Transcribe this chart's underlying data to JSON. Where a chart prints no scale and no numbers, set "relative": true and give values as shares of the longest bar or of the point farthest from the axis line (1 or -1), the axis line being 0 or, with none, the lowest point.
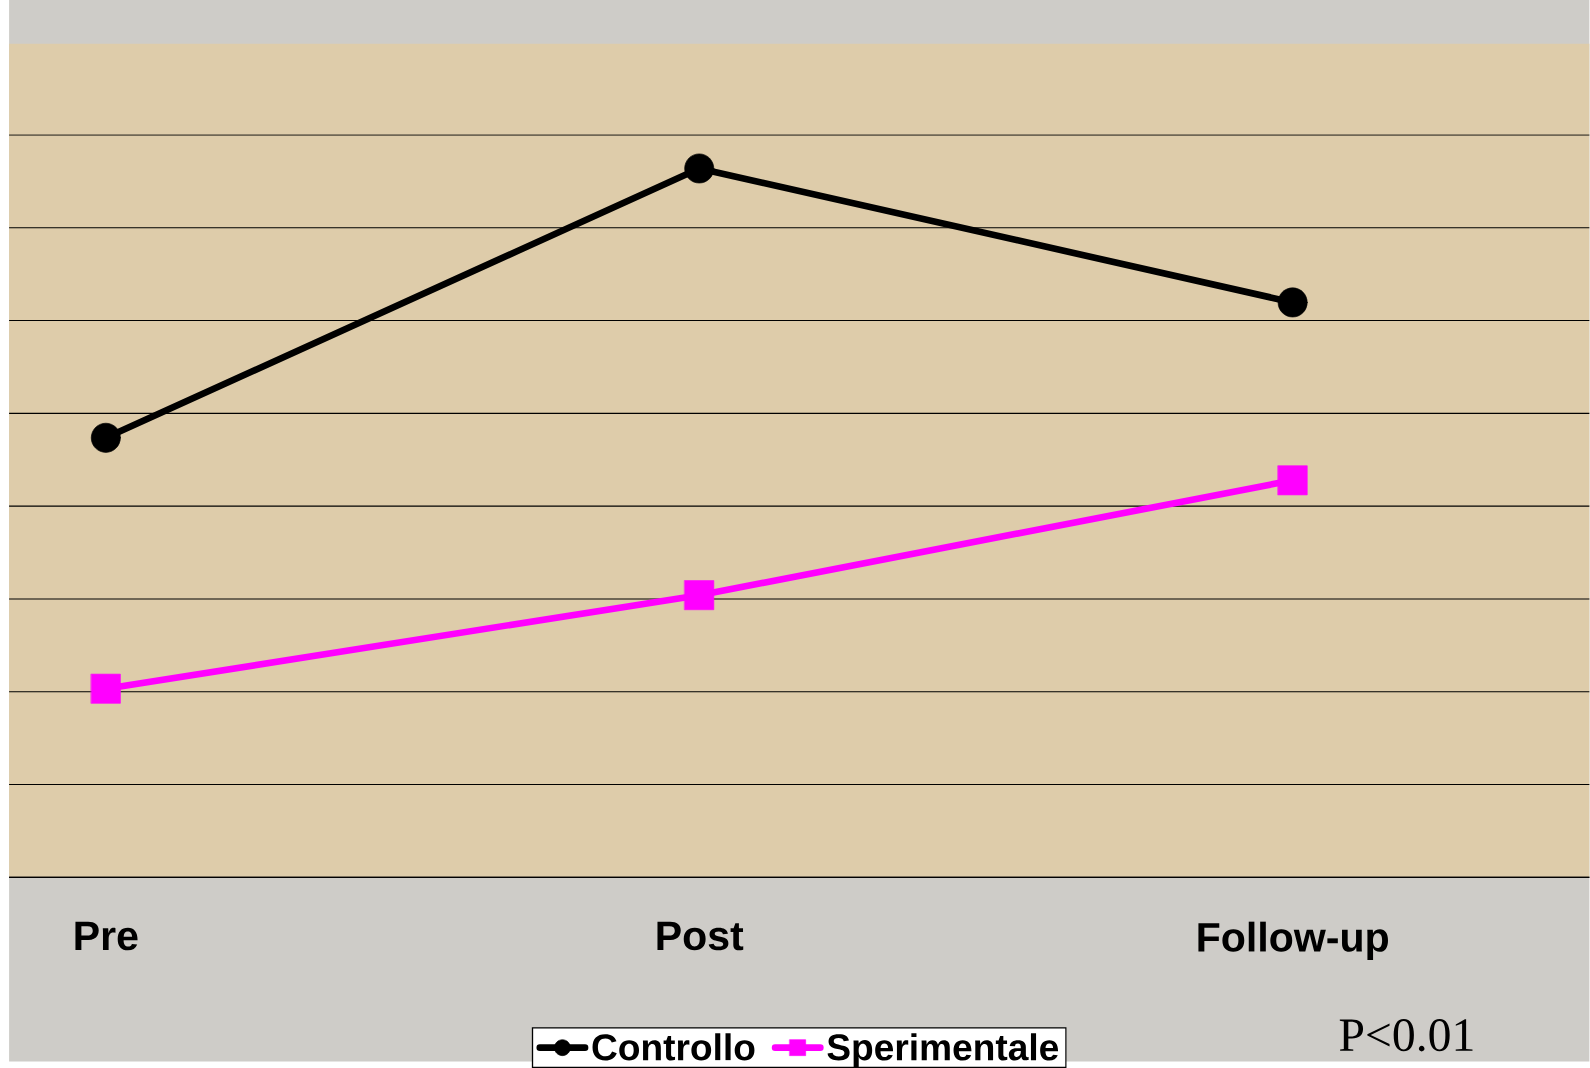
{
  "chart_data": {
    "type": "line",
    "relative": true,
    "categories": [
      "Pre",
      "Post",
      "Follow-up"
    ],
    "series": [
      {
        "name": "Controllo",
        "color": "#000000",
        "marker": "circle",
        "values": [
          0.62,
          1,
          0.811
        ]
      },
      {
        "name": "Sperimentale",
        "color": "#ff00ff",
        "marker": "square",
        "values": [
          0.266,
          0.398,
          0.56
        ]
      }
    ],
    "grid": "y",
    "legend": "bottom",
    "annotations": [
      "P<0.01"
    ]
  }
}
